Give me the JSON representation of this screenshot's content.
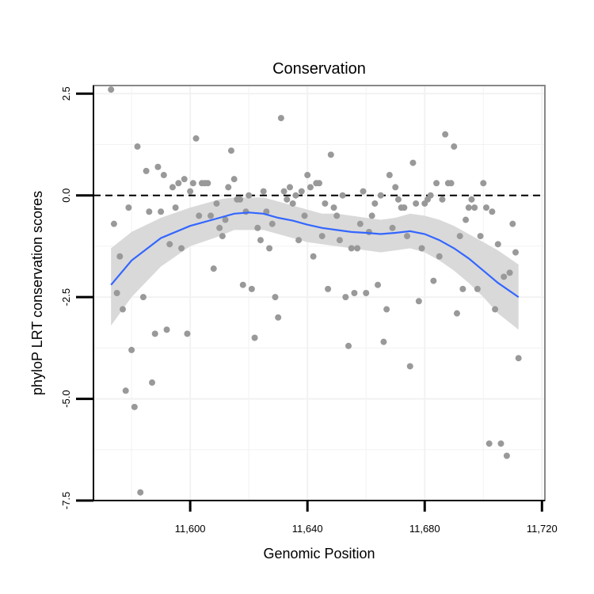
{
  "chart_data": {
    "type": "scatter",
    "title": "Conservation",
    "xlabel": "Genomic Position",
    "ylabel": "phyloP LRT conservation scores",
    "xlim": [
      11567,
      11721
    ],
    "ylim": [
      -7.5,
      2.7
    ],
    "x_ticks": [
      11600,
      11640,
      11680,
      11720
    ],
    "x_tick_labels": [
      "11,600",
      "11,640",
      "11,680",
      "11,720"
    ],
    "y_ticks": [
      2.5,
      0,
      -2.5,
      -5,
      -7.5
    ],
    "y_tick_labels": [
      "2.5",
      "0.0",
      "-2.5",
      "-5.0",
      "-7.5"
    ],
    "reference_line_y": 0,
    "grid": true,
    "colors": {
      "points": "#999999",
      "smooth": "#3366ff",
      "ribbon": "#d9d9d9",
      "grid": "#f2f2f2",
      "reference": "#000000",
      "panel_border": "#888888"
    },
    "points": [
      [
        11573,
        2.6
      ],
      [
        11574,
        -0.7
      ],
      [
        11575,
        -2.4
      ],
      [
        11576,
        -1.5
      ],
      [
        11577,
        -2.8
      ],
      [
        11578,
        -4.8
      ],
      [
        11579,
        -0.3
      ],
      [
        11580,
        -3.8
      ],
      [
        11581,
        -5.2
      ],
      [
        11582,
        1.2
      ],
      [
        11583,
        -7.3
      ],
      [
        11584,
        -2.5
      ],
      [
        11585,
        0.6
      ],
      [
        11586,
        -0.4
      ],
      [
        11587,
        -4.6
      ],
      [
        11588,
        -3.4
      ],
      [
        11589,
        0.7
      ],
      [
        11590,
        -0.4
      ],
      [
        11591,
        0.5
      ],
      [
        11592,
        -3.3
      ],
      [
        11593,
        -1.2
      ],
      [
        11594,
        0.2
      ],
      [
        11595,
        -0.3
      ],
      [
        11596,
        0.3
      ],
      [
        11597,
        -1.3
      ],
      [
        11598,
        0.4
      ],
      [
        11599,
        -3.4
      ],
      [
        11600,
        0.1
      ],
      [
        11601,
        0.3
      ],
      [
        11602,
        1.4
      ],
      [
        11603,
        -0.5
      ],
      [
        11604,
        0.3
      ],
      [
        11605,
        0.3
      ],
      [
        11606,
        0.3
      ],
      [
        11607,
        -0.5
      ],
      [
        11608,
        -1.8
      ],
      [
        11609,
        -0.2
      ],
      [
        11610,
        -0.8
      ],
      [
        11611,
        -1.0
      ],
      [
        11612,
        -0.6
      ],
      [
        11613,
        0.2
      ],
      [
        11614,
        1.1
      ],
      [
        11615,
        0.4
      ],
      [
        11616,
        -0.1
      ],
      [
        11617,
        -0.1
      ],
      [
        11618,
        -2.2
      ],
      [
        11619,
        -0.4
      ],
      [
        11620,
        0.0
      ],
      [
        11621,
        -2.3
      ],
      [
        11622,
        -3.5
      ],
      [
        11623,
        -0.8
      ],
      [
        11624,
        -1.1
      ],
      [
        11625,
        0.1
      ],
      [
        11626,
        -0.4
      ],
      [
        11627,
        -1.3
      ],
      [
        11628,
        -0.7
      ],
      [
        11629,
        -2.5
      ],
      [
        11630,
        -3.0
      ],
      [
        11631,
        1.9
      ],
      [
        11632,
        0.1
      ],
      [
        11633,
        -0.1
      ],
      [
        11634,
        0.2
      ],
      [
        11635,
        -0.2
      ],
      [
        11636,
        0.0
      ],
      [
        11637,
        -1.1
      ],
      [
        11638,
        0.1
      ],
      [
        11639,
        -0.5
      ],
      [
        11640,
        0.5
      ],
      [
        11641,
        0.2
      ],
      [
        11642,
        -1.5
      ],
      [
        11643,
        0.3
      ],
      [
        11644,
        0.3
      ],
      [
        11645,
        -1.0
      ],
      [
        11646,
        -0.2
      ],
      [
        11647,
        -2.3
      ],
      [
        11648,
        1.0
      ],
      [
        11649,
        -0.3
      ],
      [
        11650,
        -0.5
      ],
      [
        11651,
        -1.1
      ],
      [
        11652,
        0.0
      ],
      [
        11653,
        -2.5
      ],
      [
        11654,
        -3.7
      ],
      [
        11655,
        -1.3
      ],
      [
        11656,
        -2.4
      ],
      [
        11657,
        -1.3
      ],
      [
        11658,
        -0.7
      ],
      [
        11659,
        0.1
      ],
      [
        11660,
        -2.4
      ],
      [
        11661,
        -0.9
      ],
      [
        11662,
        -0.5
      ],
      [
        11663,
        -0.2
      ],
      [
        11664,
        -2.2
      ],
      [
        11665,
        0.0
      ],
      [
        11666,
        -3.6
      ],
      [
        11667,
        -2.8
      ],
      [
        11668,
        0.5
      ],
      [
        11669,
        -0.8
      ],
      [
        11670,
        0.2
      ],
      [
        11671,
        -0.1
      ],
      [
        11672,
        -0.3
      ],
      [
        11673,
        -0.3
      ],
      [
        11674,
        -1.0
      ],
      [
        11675,
        -4.2
      ],
      [
        11676,
        0.8
      ],
      [
        11677,
        -0.2
      ],
      [
        11678,
        -2.6
      ],
      [
        11679,
        -1.3
      ],
      [
        11680,
        -0.2
      ],
      [
        11681,
        -0.1
      ],
      [
        11682,
        0.0
      ],
      [
        11683,
        -2.1
      ],
      [
        11684,
        0.3
      ],
      [
        11685,
        -1.5
      ],
      [
        11686,
        -0.1
      ],
      [
        11687,
        1.5
      ],
      [
        11688,
        0.3
      ],
      [
        11689,
        0.3
      ],
      [
        11690,
        1.2
      ],
      [
        11691,
        -2.9
      ],
      [
        11692,
        -1.0
      ],
      [
        11693,
        -2.3
      ],
      [
        11694,
        -0.6
      ],
      [
        11695,
        -0.3
      ],
      [
        11696,
        -0.1
      ],
      [
        11697,
        -0.3
      ],
      [
        11698,
        -2.3
      ],
      [
        11699,
        -1.0
      ],
      [
        11700,
        0.3
      ],
      [
        11701,
        -0.3
      ],
      [
        11702,
        -6.1
      ],
      [
        11703,
        -0.4
      ],
      [
        11704,
        -2.8
      ],
      [
        11705,
        -1.2
      ],
      [
        11706,
        -6.1
      ],
      [
        11707,
        -2.0
      ],
      [
        11708,
        -6.4
      ],
      [
        11709,
        -1.9
      ],
      [
        11710,
        -0.7
      ],
      [
        11711,
        -1.4
      ],
      [
        11712,
        -4.0
      ]
    ],
    "smooth": [
      [
        11573,
        -2.2
      ],
      [
        11580,
        -1.6
      ],
      [
        11590,
        -1.05
      ],
      [
        11600,
        -0.75
      ],
      [
        11610,
        -0.55
      ],
      [
        11615,
        -0.45
      ],
      [
        11620,
        -0.42
      ],
      [
        11625,
        -0.45
      ],
      [
        11630,
        -0.55
      ],
      [
        11635,
        -0.62
      ],
      [
        11640,
        -0.72
      ],
      [
        11645,
        -0.8
      ],
      [
        11650,
        -0.85
      ],
      [
        11655,
        -0.9
      ],
      [
        11660,
        -0.92
      ],
      [
        11665,
        -0.95
      ],
      [
        11670,
        -0.92
      ],
      [
        11675,
        -0.88
      ],
      [
        11680,
        -0.95
      ],
      [
        11685,
        -1.1
      ],
      [
        11690,
        -1.3
      ],
      [
        11695,
        -1.55
      ],
      [
        11700,
        -1.85
      ],
      [
        11705,
        -2.15
      ],
      [
        11712,
        -2.5
      ]
    ],
    "ribbon": [
      [
        11573,
        -1.3,
        -3.2
      ],
      [
        11580,
        -0.9,
        -2.5
      ],
      [
        11590,
        -0.55,
        -1.75
      ],
      [
        11600,
        -0.3,
        -1.25
      ],
      [
        11610,
        -0.1,
        -1.0
      ],
      [
        11615,
        -0.05,
        -0.85
      ],
      [
        11620,
        -0.05,
        -0.85
      ],
      [
        11625,
        -0.05,
        -0.85
      ],
      [
        11630,
        -0.15,
        -0.95
      ],
      [
        11635,
        -0.25,
        -1.05
      ],
      [
        11640,
        -0.35,
        -1.15
      ],
      [
        11645,
        -0.45,
        -1.2
      ],
      [
        11650,
        -0.45,
        -1.25
      ],
      [
        11655,
        -0.5,
        -1.3
      ],
      [
        11660,
        -0.55,
        -1.35
      ],
      [
        11665,
        -0.6,
        -1.4
      ],
      [
        11670,
        -0.55,
        -1.35
      ],
      [
        11675,
        -0.45,
        -1.3
      ],
      [
        11680,
        -0.5,
        -1.4
      ],
      [
        11685,
        -0.6,
        -1.6
      ],
      [
        11690,
        -0.75,
        -1.85
      ],
      [
        11695,
        -0.95,
        -2.15
      ],
      [
        11700,
        -1.15,
        -2.5
      ],
      [
        11705,
        -1.35,
        -2.9
      ],
      [
        11712,
        -1.7,
        -3.3
      ]
    ]
  }
}
